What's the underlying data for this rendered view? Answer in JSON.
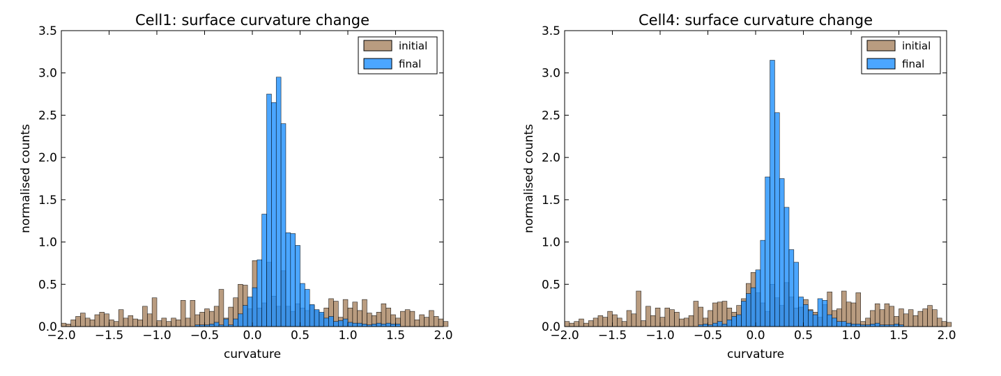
{
  "chart_data": [
    {
      "type": "bar",
      "title": "Cell1: surface curvature change",
      "xlabel": "curvature",
      "ylabel": "normalised counts",
      "xlim": [
        -2.0,
        2.0
      ],
      "ylim": [
        0.0,
        3.5
      ],
      "xticks": [
        "−2.0",
        "−1.5",
        "−1.0",
        "−0.5",
        "0.0",
        "0.5",
        "1.0",
        "1.5",
        "2.0"
      ],
      "yticks": [
        "0.0",
        "0.5",
        "1.0",
        "1.5",
        "2.0",
        "2.5",
        "3.0",
        "3.5"
      ],
      "grid": false,
      "legend": "top-right",
      "bin_width": 0.05,
      "series": [
        {
          "name": "initial",
          "color": "#8b5a2b",
          "x_start": -2.0,
          "values": [
            0.04,
            0.03,
            0.08,
            0.12,
            0.16,
            0.1,
            0.08,
            0.14,
            0.17,
            0.15,
            0.08,
            0.06,
            0.2,
            0.1,
            0.13,
            0.09,
            0.08,
            0.24,
            0.15,
            0.34,
            0.07,
            0.1,
            0.06,
            0.1,
            0.08,
            0.31,
            0.1,
            0.31,
            0.14,
            0.17,
            0.21,
            0.18,
            0.24,
            0.44,
            0.1,
            0.23,
            0.34,
            0.5,
            0.49,
            0.21,
            0.78,
            0.22,
            0.28,
            0.76,
            0.36,
            0.24,
            0.66,
            0.24,
            0.18,
            0.27,
            0.22,
            0.19,
            0.25,
            0.19,
            0.15,
            0.22,
            0.33,
            0.3,
            0.11,
            0.32,
            0.22,
            0.29,
            0.19,
            0.32,
            0.16,
            0.13,
            0.17,
            0.27,
            0.22,
            0.14,
            0.1,
            0.18,
            0.2,
            0.18,
            0.08,
            0.14,
            0.11,
            0.19,
            0.12,
            0.09,
            0.06
          ]
        },
        {
          "name": "final",
          "color": "#1e90ff",
          "x_start": -0.6,
          "values": [
            0.02,
            0.02,
            0.02,
            0.03,
            0.05,
            0.02,
            0.09,
            0.02,
            0.09,
            0.15,
            0.25,
            0.35,
            0.46,
            0.79,
            1.33,
            2.75,
            2.65,
            2.95,
            2.4,
            1.11,
            1.1,
            0.96,
            0.51,
            0.44,
            0.26,
            0.2,
            0.17,
            0.1,
            0.12,
            0.06,
            0.07,
            0.09,
            0.05,
            0.04,
            0.04,
            0.03,
            0.02,
            0.03,
            0.04,
            0.03,
            0.04,
            0.03,
            0.03
          ]
        }
      ]
    },
    {
      "type": "bar",
      "title": "Cell4: surface curvature change",
      "xlabel": "curvature",
      "ylabel": "normalised counts",
      "xlim": [
        -2.0,
        2.0
      ],
      "ylim": [
        0.0,
        3.5
      ],
      "xticks": [
        "−2.0",
        "−1.5",
        "−1.0",
        "−0.5",
        "0.0",
        "0.5",
        "1.0",
        "1.5",
        "2.0"
      ],
      "yticks": [
        "0.0",
        "0.5",
        "1.0",
        "1.5",
        "2.0",
        "2.5",
        "3.0",
        "3.5"
      ],
      "grid": false,
      "legend": "top-right",
      "bin_width": 0.05,
      "series": [
        {
          "name": "initial",
          "color": "#8b5a2b",
          "x_start": -2.0,
          "values": [
            0.06,
            0.04,
            0.06,
            0.09,
            0.04,
            0.07,
            0.1,
            0.13,
            0.11,
            0.18,
            0.14,
            0.1,
            0.06,
            0.19,
            0.15,
            0.42,
            0.07,
            0.24,
            0.13,
            0.22,
            0.11,
            0.22,
            0.2,
            0.17,
            0.09,
            0.1,
            0.13,
            0.3,
            0.23,
            0.1,
            0.19,
            0.28,
            0.29,
            0.3,
            0.22,
            0.17,
            0.25,
            0.33,
            0.51,
            0.64,
            0.4,
            0.28,
            0.18,
            0.5,
            0.34,
            0.25,
            0.52,
            0.35,
            0.22,
            0.23,
            0.32,
            0.2,
            0.17,
            0.11,
            0.26,
            0.41,
            0.19,
            0.21,
            0.42,
            0.29,
            0.28,
            0.4,
            0.06,
            0.1,
            0.19,
            0.27,
            0.2,
            0.27,
            0.24,
            0.12,
            0.21,
            0.15,
            0.2,
            0.13,
            0.18,
            0.21,
            0.25,
            0.2,
            0.1,
            0.06,
            0.05
          ]
        },
        {
          "name": "final",
          "color": "#1e90ff",
          "x_start": -0.6,
          "values": [
            0.02,
            0.03,
            0.02,
            0.04,
            0.06,
            0.03,
            0.08,
            0.12,
            0.14,
            0.3,
            0.39,
            0.46,
            0.67,
            1.02,
            1.77,
            3.15,
            2.53,
            1.75,
            1.41,
            0.91,
            0.76,
            0.35,
            0.26,
            0.19,
            0.14,
            0.33,
            0.31,
            0.14,
            0.1,
            0.06,
            0.06,
            0.04,
            0.03,
            0.03,
            0.02,
            0.02,
            0.03,
            0.04,
            0.02,
            0.02,
            0.02,
            0.03,
            0.02
          ]
        }
      ]
    }
  ]
}
